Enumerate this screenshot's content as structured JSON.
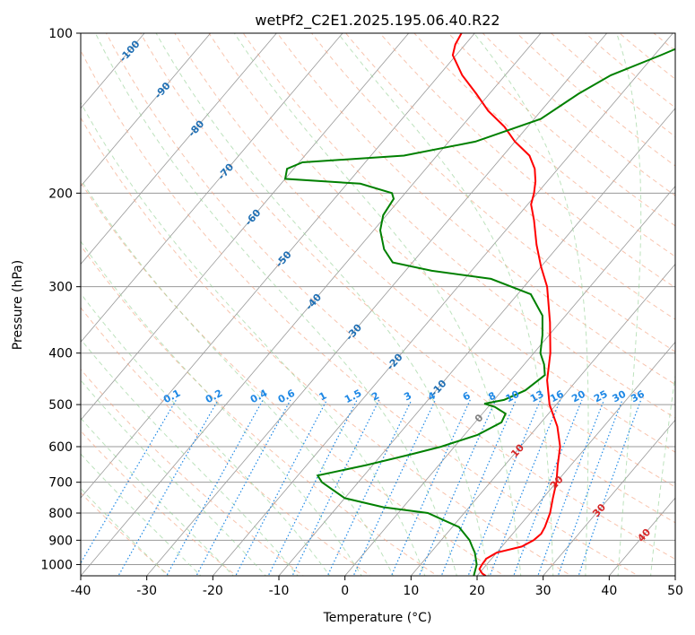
{
  "chart_data": {
    "type": "line",
    "title": "wetPf2_C2E1.2025.195.06.40.R22",
    "xlabel": "Temperature (°C)",
    "ylabel": "Pressure (hPa)",
    "xlim": [
      -40,
      50
    ],
    "ylim": [
      1050,
      100
    ],
    "y_scale": "log",
    "skew_note_hidden": true,
    "x_ticks": [
      -40,
      -30,
      -20,
      -10,
      0,
      10,
      20,
      30,
      40,
      50
    ],
    "y_ticks": [
      100,
      200,
      300,
      400,
      500,
      600,
      700,
      800,
      900,
      1000
    ],
    "grid": true,
    "series": [
      {
        "color": "#ff0000",
        "points": [
          [
            1050,
            21.3
          ],
          [
            1040,
            20.5
          ],
          [
            1020,
            19.5
          ],
          [
            1000,
            19.3
          ],
          [
            975,
            19.2
          ],
          [
            950,
            20.0
          ],
          [
            925,
            23.0
          ],
          [
            900,
            24.0
          ],
          [
            875,
            24.3
          ],
          [
            850,
            24.0
          ],
          [
            800,
            23.0
          ],
          [
            750,
            21.5
          ],
          [
            700,
            20.0
          ],
          [
            650,
            18.0
          ],
          [
            600,
            16.0
          ],
          [
            550,
            13.0
          ],
          [
            500,
            9.0
          ],
          [
            450,
            5.5
          ],
          [
            400,
            2.5
          ],
          [
            350,
            -1.5
          ],
          [
            300,
            -6.5
          ],
          [
            275,
            -10.0
          ],
          [
            250,
            -13.5
          ],
          [
            225,
            -17.0
          ],
          [
            210,
            -19.5
          ],
          [
            200,
            -20.5
          ],
          [
            190,
            -21.8
          ],
          [
            180,
            -23.5
          ],
          [
            170,
            -26.0
          ],
          [
            160,
            -30.0
          ],
          [
            150,
            -33.5
          ],
          [
            140,
            -38.0
          ],
          [
            130,
            -42.0
          ],
          [
            120,
            -46.5
          ],
          [
            110,
            -50.5
          ],
          [
            105,
            -51.5
          ],
          [
            100,
            -52.0
          ]
        ]
      },
      {
        "color": "#008000",
        "points": [
          [
            1050,
            19.5
          ],
          [
            1000,
            18.5
          ],
          [
            950,
            16.7
          ],
          [
            925,
            15.5
          ],
          [
            900,
            14.3
          ],
          [
            850,
            11.0
          ],
          [
            800,
            4.5
          ],
          [
            780,
            -3.0
          ],
          [
            750,
            -10.0
          ],
          [
            700,
            -15.5
          ],
          [
            680,
            -17.0
          ],
          [
            650,
            -11.0
          ],
          [
            620,
            -5.5
          ],
          [
            600,
            -2.0
          ],
          [
            570,
            2.0
          ],
          [
            540,
            4.0
          ],
          [
            520,
            3.5
          ],
          [
            505,
            1.0
          ],
          [
            498,
            -1.0
          ],
          [
            490,
            1.5
          ],
          [
            470,
            3.5
          ],
          [
            440,
            4.5
          ],
          [
            420,
            3.0
          ],
          [
            400,
            1.0
          ],
          [
            370,
            -1.0
          ],
          [
            340,
            -3.5
          ],
          [
            310,
            -8.0
          ],
          [
            290,
            -16.0
          ],
          [
            280,
            -26.0
          ],
          [
            270,
            -33.0
          ],
          [
            255,
            -36.0
          ],
          [
            235,
            -39.0
          ],
          [
            220,
            -40.5
          ],
          [
            205,
            -41.0
          ],
          [
            200,
            -42.0
          ],
          [
            192,
            -48.0
          ],
          [
            188,
            -60.0
          ],
          [
            180,
            -61.0
          ],
          [
            175,
            -59.5
          ],
          [
            170,
            -45.0
          ],
          [
            160,
            -36.0
          ],
          [
            145,
            -29.0
          ],
          [
            130,
            -26.5
          ],
          [
            120,
            -24.0
          ],
          [
            110,
            -19.0
          ],
          [
            100,
            -14.0
          ]
        ]
      }
    ],
    "dry_adiabats_label": [
      "-100",
      "-90",
      "-80",
      "-70",
      "-60",
      "-50",
      "-40",
      "-30",
      "-20",
      "-10",
      "0",
      "10",
      "20",
      "30",
      "40"
    ],
    "mixing_ratio_labels": [
      "0.1",
      "0.2",
      "0.4",
      "0.6",
      "1",
      "1.5",
      "2",
      "3",
      "4",
      "6",
      "8",
      "10",
      "13",
      "16",
      "20",
      "25",
      "30",
      "36"
    ],
    "mixing_ratio_values": [
      0.1,
      0.2,
      0.4,
      0.6,
      1,
      1.5,
      2,
      3,
      4,
      6,
      8,
      10,
      13,
      16,
      20,
      25,
      30,
      36
    ],
    "colors": {
      "temperature": "#ff0000",
      "dewpoint": "#008000",
      "isotherm": "#999999",
      "dry_adiabat": "#f4a582",
      "moist_adiabat": "#91cf91",
      "mixing_ratio": "#1e88e5",
      "dry_label": "#1f6fb4",
      "hot_label": "#d62728"
    }
  }
}
